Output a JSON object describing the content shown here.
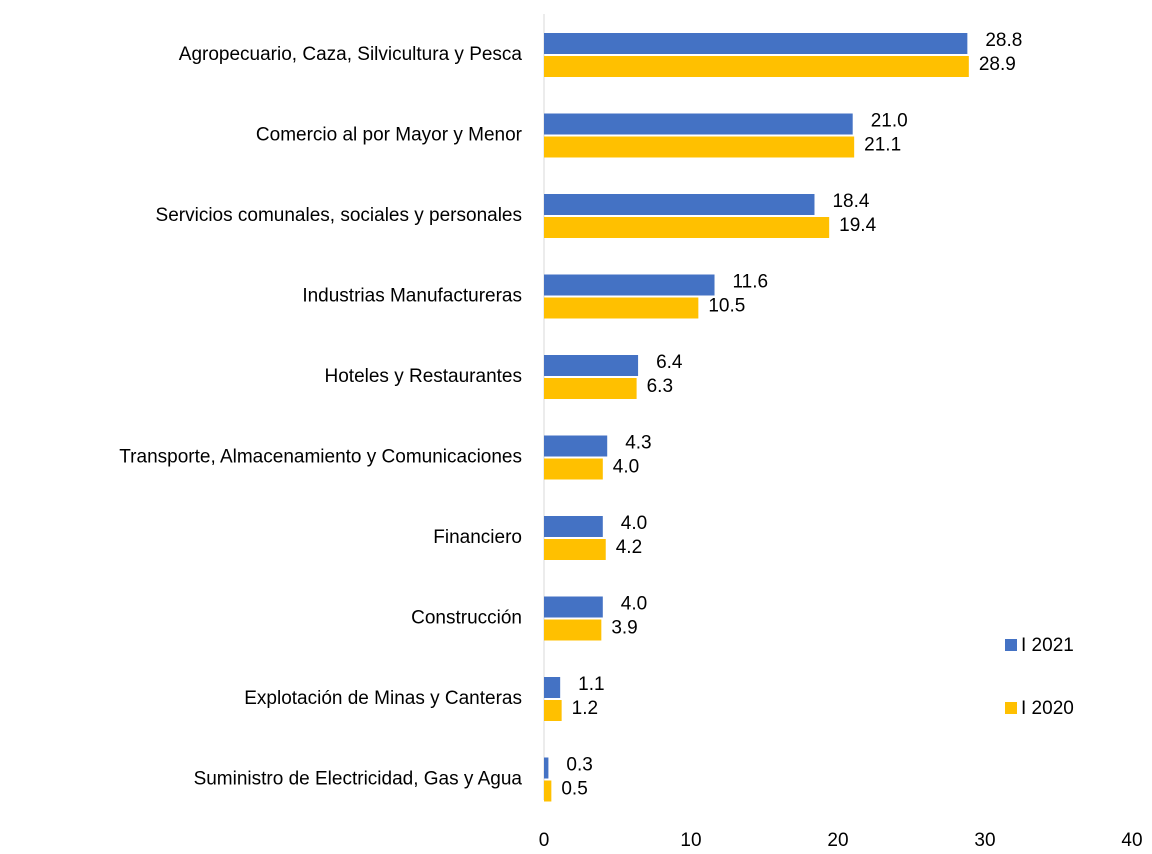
{
  "chart_data": {
    "type": "bar",
    "orientation": "horizontal",
    "categories": [
      "Agropecuario, Caza, Silvicultura y Pesca",
      "Comercio al por Mayor y Menor",
      "Servicios comunales, sociales y personales",
      "Industrias Manufactureras",
      "Hoteles y Restaurantes",
      "Transporte, Almacenamiento y Comunicaciones",
      "Financiero",
      "Construcción",
      "Explotación de Minas y Canteras",
      "Suministro de Electricidad, Gas y Agua"
    ],
    "series": [
      {
        "name": "I 2021",
        "color": "#4472c4",
        "values": [
          28.8,
          21.0,
          18.4,
          11.6,
          6.4,
          4.3,
          4.0,
          4.0,
          1.1,
          0.3
        ],
        "value_labels": [
          "28.8",
          "21.0",
          "18.4",
          "11.6",
          "6.4",
          "4.3",
          "4.0",
          "4.0",
          "1.1",
          "0.3"
        ]
      },
      {
        "name": "I 2020",
        "color": "#ffc000",
        "values": [
          28.9,
          21.1,
          19.4,
          10.5,
          6.3,
          4.0,
          4.2,
          3.9,
          1.2,
          0.5
        ],
        "value_labels": [
          "28.9",
          "21.1",
          "19.4",
          "10.5",
          "6.3",
          "4.0",
          "4.2",
          "3.9",
          "1.2",
          "0.5"
        ]
      }
    ],
    "xlim": [
      0,
      40
    ],
    "xticks": [
      0,
      10,
      20,
      30,
      40
    ],
    "grid": false,
    "legend": "right"
  }
}
